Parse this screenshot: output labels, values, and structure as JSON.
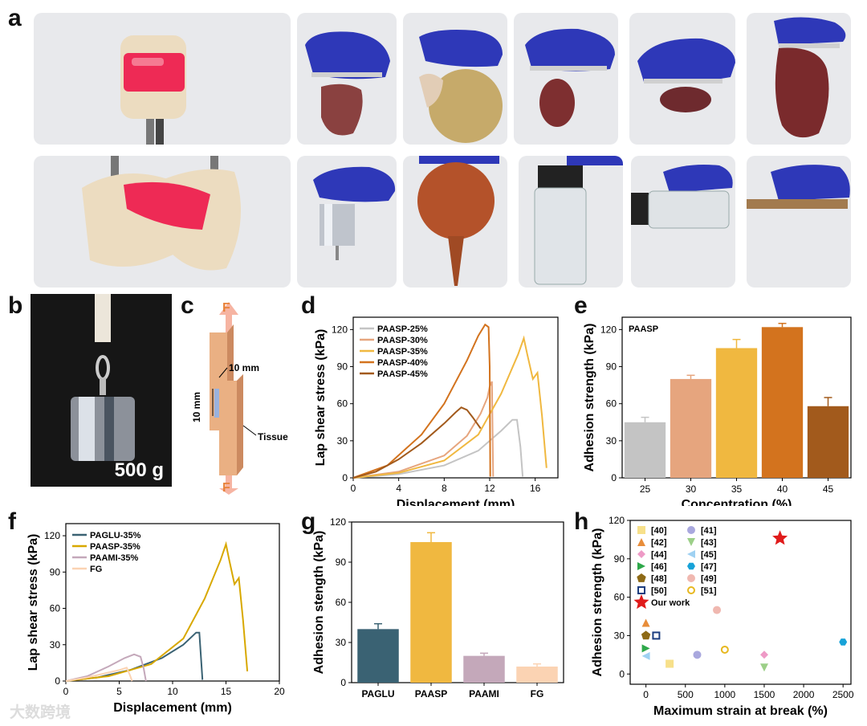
{
  "panel_labels": {
    "a": "a",
    "b": "b",
    "c": "c",
    "d": "d",
    "e": "e",
    "f": "f",
    "g": "g",
    "h": "h"
  },
  "photos": {
    "top_row": [
      "tissue-cylinder",
      "heart-glove",
      "stomach-glove",
      "kidney-glove",
      "liver-piece-glove",
      "liver-lobes-glove"
    ],
    "bottom_row": [
      "tissue-twisted",
      "metal-weight-glove",
      "rubber-bulb-glove",
      "glass-vial-glove",
      "vial-sideways-glove",
      "wood-stick-glove"
    ]
  },
  "panel_b": {
    "weight_label": "500 g"
  },
  "panel_c": {
    "force_top": "F",
    "force_bottom": "F",
    "width_label": "10 mm",
    "height_label": "10 mm",
    "tissue_label": "Tissue"
  },
  "watermark": "大数跨境",
  "colors": {
    "paasp25": "#c4c4c4",
    "paasp30": "#e6a57e",
    "paasp35": "#f0b840",
    "paasp40": "#d3731e",
    "paasp45": "#a25a1c",
    "paglu": "#3a6273",
    "paami": "#c4a8ba",
    "fg": "#fbd3b3"
  },
  "chart_data": [
    {
      "id": "d",
      "type": "line",
      "xlabel": "Displacement (mm)",
      "ylabel": "Lap shear stress (kPa)",
      "xlim": [
        0,
        18
      ],
      "ylim": [
        0,
        130
      ],
      "xticks": [
        "0",
        "4",
        "8",
        "12",
        "16"
      ],
      "xtick_values": [
        0,
        4,
        8,
        12,
        16
      ],
      "yticks": [
        "0",
        "30",
        "60",
        "90",
        "120"
      ],
      "ytick_values": [
        0,
        30,
        60,
        90,
        120
      ],
      "legend": [
        "PAASP-25%",
        "PAASP-30%",
        "PAASP-35%",
        "PAASP-40%",
        "PAASP-45%"
      ],
      "series": [
        {
          "name": "PAASP-25%",
          "color": "#c4c4c4",
          "x": [
            0,
            4,
            8,
            11,
            13,
            14,
            14.4,
            14.7,
            14.9
          ],
          "y": [
            0,
            3,
            10,
            22,
            38,
            47,
            47,
            25,
            1
          ]
        },
        {
          "name": "PAASP-30%",
          "color": "#e6a57e",
          "x": [
            0,
            4,
            8,
            10,
            11.2,
            11.8,
            12.0,
            12.2,
            12.3
          ],
          "y": [
            0,
            5,
            18,
            34,
            52,
            65,
            74,
            78,
            1
          ]
        },
        {
          "name": "PAASP-35%",
          "color": "#f0b840",
          "x": [
            0,
            4,
            8,
            11,
            13,
            14.5,
            15.0,
            15.3,
            15.8,
            16.2,
            16.6,
            17.0
          ],
          "y": [
            0,
            4,
            14,
            35,
            68,
            100,
            113,
            100,
            80,
            85,
            50,
            8
          ]
        },
        {
          "name": "PAASP-40%",
          "color": "#d3731e",
          "x": [
            0,
            3,
            6,
            8,
            10,
            11,
            11.6,
            11.9,
            12.0,
            12.05
          ],
          "y": [
            0,
            10,
            35,
            60,
            95,
            115,
            124,
            122,
            90,
            1
          ]
        },
        {
          "name": "PAASP-45%",
          "color": "#a25a1c",
          "x": [
            0,
            2,
            4,
            6,
            8,
            9,
            9.5,
            10,
            10.5,
            11.2
          ],
          "y": [
            0,
            5,
            15,
            28,
            44,
            53,
            57,
            55,
            49,
            40
          ]
        }
      ]
    },
    {
      "id": "e",
      "type": "bar",
      "annotation": "PAASP",
      "xlabel": "Concentration (%)",
      "ylabel": "Adhesion strength (kPa)",
      "categories": [
        "25",
        "30",
        "35",
        "40",
        "45"
      ],
      "values": [
        45,
        80,
        105,
        122,
        58
      ],
      "errors": [
        4,
        3,
        7,
        3,
        7
      ],
      "bar_colors": [
        "#c4c4c4",
        "#e6a57e",
        "#f0b840",
        "#d3731e",
        "#a25a1c"
      ],
      "ylim": [
        0,
        130
      ],
      "yticks": [
        "0",
        "30",
        "60",
        "90",
        "120"
      ],
      "ytick_values": [
        0,
        30,
        60,
        90,
        120
      ]
    },
    {
      "id": "f",
      "type": "line",
      "xlabel": "Displacement (mm)",
      "ylabel": "Lap shear stress (kPa)",
      "xlim": [
        0,
        20
      ],
      "ylim": [
        0,
        130
      ],
      "xticks": [
        "0",
        "5",
        "10",
        "15",
        "20"
      ],
      "xtick_values": [
        0,
        5,
        10,
        15,
        20
      ],
      "yticks": [
        "0",
        "30",
        "60",
        "90",
        "120"
      ],
      "ytick_values": [
        0,
        30,
        60,
        90,
        120
      ],
      "legend": [
        "PAGLU-35%",
        "PAASP-35%",
        "PAAMI-35%",
        "FG"
      ],
      "series": [
        {
          "name": "PAGLU-35%",
          "color": "#3a6273",
          "x": [
            0,
            3,
            6,
            9,
            11,
            12.2,
            12.5,
            12.8
          ],
          "y": [
            0,
            3,
            9,
            19,
            30,
            40,
            40,
            1
          ]
        },
        {
          "name": "PAASP-35%",
          "color": "#d8a800",
          "x": [
            0,
            4,
            8,
            11,
            13,
            14.5,
            15.0,
            15.3,
            15.8,
            16.2,
            16.6,
            17.0
          ],
          "y": [
            0,
            4,
            14,
            35,
            68,
            100,
            113,
            100,
            80,
            85,
            50,
            8
          ]
        },
        {
          "name": "PAAMI-35%",
          "color": "#c4a8ba",
          "x": [
            0,
            2,
            4,
            5.5,
            6.4,
            7.0,
            7.3,
            7.5
          ],
          "y": [
            0,
            4,
            12,
            19,
            22,
            20,
            10,
            0
          ]
        },
        {
          "name": "FG",
          "color": "#fbd3b3",
          "x": [
            0,
            2,
            4,
            5,
            5.7,
            6.0,
            6.2
          ],
          "y": [
            0,
            3,
            7,
            9,
            11,
            5,
            0
          ]
        }
      ]
    },
    {
      "id": "g",
      "type": "bar",
      "xlabel": "",
      "ylabel": "Adhesion stength (kPa)",
      "categories": [
        "PAGLU",
        "PAASP",
        "PAAMI",
        "FG"
      ],
      "values": [
        40,
        105,
        20,
        12
      ],
      "errors": [
        4,
        7,
        2,
        2
      ],
      "bar_colors": [
        "#3a6273",
        "#f0b840",
        "#c4a8ba",
        "#fbd3b3"
      ],
      "ylim": [
        0,
        120
      ],
      "yticks": [
        "0",
        "30",
        "60",
        "90",
        "120"
      ],
      "ytick_values": [
        0,
        30,
        60,
        90,
        120
      ]
    },
    {
      "id": "h",
      "type": "scatter",
      "xlabel": "Maximum strain at break (%)",
      "ylabel": "Adhesion strength (kPa)",
      "xlim": [
        -200,
        2600
      ],
      "ylim": [
        -8,
        120
      ],
      "xticks": [
        "0",
        "500",
        "1000",
        "1500",
        "2000",
        "2500"
      ],
      "xtick_values": [
        0,
        500,
        1000,
        1500,
        2000,
        2500
      ],
      "yticks": [
        "0",
        "30",
        "60",
        "90",
        "120"
      ],
      "ytick_values": [
        0,
        30,
        60,
        90,
        120
      ],
      "points": [
        {
          "label": "[40]",
          "x": 300,
          "y": 8,
          "marker": "square",
          "color": "#f7e08a"
        },
        {
          "label": "[41]",
          "x": 650,
          "y": 15,
          "marker": "circle",
          "color": "#a9a8de"
        },
        {
          "label": "[42]",
          "x": 0,
          "y": 40,
          "marker": "triangle-up",
          "color": "#e88d3a"
        },
        {
          "label": "[43]",
          "x": 1500,
          "y": 5,
          "marker": "triangle-down",
          "color": "#9ccf88"
        },
        {
          "label": "[44]",
          "x": 1500,
          "y": 15,
          "marker": "diamond",
          "color": "#ee9ac6"
        },
        {
          "label": "[45]",
          "x": 0,
          "y": 14,
          "marker": "triangle-left",
          "color": "#9fd1f2"
        },
        {
          "label": "[46]",
          "x": 0,
          "y": 20,
          "marker": "triangle-right",
          "color": "#2ea84a"
        },
        {
          "label": "[47]",
          "x": 2500,
          "y": 25,
          "marker": "hexagon",
          "color": "#17a2d8"
        },
        {
          "label": "[48]",
          "x": 0,
          "y": 30,
          "marker": "pentagon",
          "color": "#8e6a16"
        },
        {
          "label": "[49]",
          "x": 900,
          "y": 50,
          "marker": "circle",
          "color": "#f0b8b0"
        },
        {
          "label": "[50]",
          "x": 130,
          "y": 30,
          "marker": "square-open",
          "color": "#1c3e80"
        },
        {
          "label": "[51]",
          "x": 1000,
          "y": 19,
          "marker": "circle-open",
          "color": "#e7b820"
        },
        {
          "label": "Our work",
          "x": 1700,
          "y": 106,
          "marker": "star",
          "color": "#e01b1b"
        }
      ]
    }
  ]
}
